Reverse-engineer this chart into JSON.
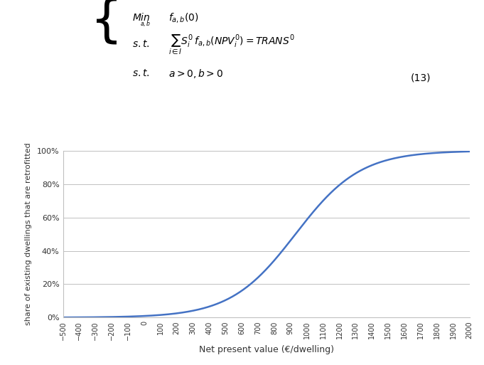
{
  "x_min": -500,
  "x_max": 2000,
  "x_ticks": [
    -500,
    -400,
    -300,
    -200,
    -100,
    0,
    100,
    200,
    300,
    400,
    500,
    600,
    700,
    800,
    900,
    1000,
    1100,
    1200,
    1300,
    1400,
    1500,
    1600,
    1700,
    1800,
    1900,
    2000
  ],
  "y_tick_values": [
    0,
    20,
    40,
    60,
    80,
    100
  ],
  "y_labels": [
    "0%",
    "20%",
    "40%",
    "60%",
    "80%",
    "100%"
  ],
  "xlabel": "Net present value (€/dwelling)",
  "ylabel": "share of existing dwellings that are retrofitted",
  "curve_color": "#4472C4",
  "curve_linewidth": 1.8,
  "logistic_midpoint": 930,
  "logistic_k": 0.005,
  "background_color": "#ffffff",
  "grid_color": "#c0c0c0",
  "equation_number": "(13)",
  "fig_width": 6.81,
  "fig_height": 5.13,
  "dpi": 100
}
